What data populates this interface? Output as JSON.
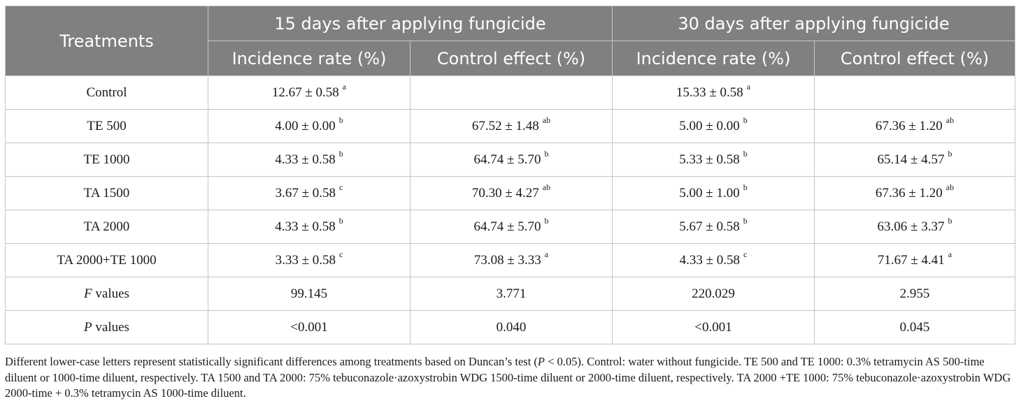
{
  "table": {
    "header": {
      "treatments": "Treatments",
      "group15": "15 days after applying fungicide",
      "group30": "30 days after applying fungicide",
      "incidence": "Incidence rate (%)",
      "control_effect": "Control effect (%)"
    },
    "rows": [
      {
        "name": "Control",
        "c1": "12.67 ± 0.58",
        "s1": "a",
        "c2": "",
        "s2": "",
        "c3": "15.33 ± 0.58",
        "s3": "a",
        "c4": "",
        "s4": ""
      },
      {
        "name": "TE 500",
        "c1": "4.00 ± 0.00",
        "s1": "b",
        "c2": "67.52 ± 1.48",
        "s2": "ab",
        "c3": "5.00 ± 0.00",
        "s3": "b",
        "c4": "67.36 ± 1.20",
        "s4": "ab"
      },
      {
        "name": "TE 1000",
        "c1": "4.33 ± 0.58",
        "s1": "b",
        "c2": "64.74 ± 5.70",
        "s2": "b",
        "c3": "5.33 ± 0.58",
        "s3": "b",
        "c4": "65.14 ± 4.57",
        "s4": "b"
      },
      {
        "name": "TA 1500",
        "c1": "3.67 ± 0.58",
        "s1": "c",
        "c2": "70.30 ± 4.27",
        "s2": "ab",
        "c3": "5.00 ± 1.00",
        "s3": "b",
        "c4": "67.36 ± 1.20",
        "s4": "ab"
      },
      {
        "name": "TA 2000",
        "c1": "4.33 ± 0.58",
        "s1": "b",
        "c2": "64.74 ± 5.70",
        "s2": "b",
        "c3": "5.67 ± 0.58",
        "s3": "b",
        "c4": "63.06 ± 3.37",
        "s4": "b"
      },
      {
        "name": "TA 2000+TE 1000",
        "c1": "3.33 ± 0.58",
        "s1": "c",
        "c2": "73.08 ± 3.33",
        "s2": "a",
        "c3": "4.33 ± 0.58",
        "s3": "c",
        "c4": "71.67 ± 4.41",
        "s4": "a"
      }
    ],
    "f_row": {
      "symbol": "F",
      "label": " values",
      "c1": "99.145",
      "c2": "3.771",
      "c3": "220.029",
      "c4": "2.955"
    },
    "p_row": {
      "symbol": "P",
      "label": " values",
      "c1": "<0.001",
      "c2": "0.040",
      "c3": "<0.001",
      "c4": "0.045"
    }
  },
  "note": {
    "part1": "Different lower-case letters represent statistically significant differences among treatments based on Duncan’s test (",
    "p_symbol": "P",
    "part2": " < 0.05). Control: water without fungicide. TE 500 and TE 1000: 0.3% tetramycin AS 500-time diluent or 1000-time diluent, respectively. TA 1500 and TA 2000: 75% tebuconazole·azoxystrobin WDG 1500-time diluent or 2000-time diluent, respectively. TA 2000 +TE 1000: 75% tebuconazole·azoxystrobin WDG 2000-time + 0.3% tetramycin AS 1000-time diluent."
  }
}
